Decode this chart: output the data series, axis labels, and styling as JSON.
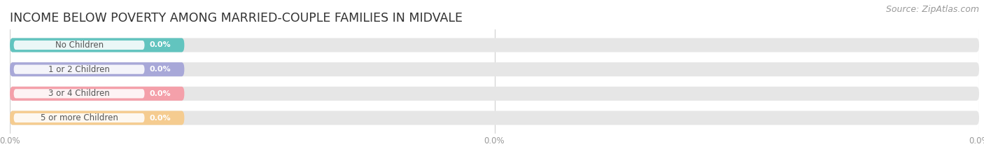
{
  "title": "INCOME BELOW POVERTY AMONG MARRIED-COUPLE FAMILIES IN MIDVALE",
  "source": "Source: ZipAtlas.com",
  "categories": [
    "No Children",
    "1 or 2 Children",
    "3 or 4 Children",
    "5 or more Children"
  ],
  "values": [
    0.0,
    0.0,
    0.0,
    0.0
  ],
  "bar_colors": [
    "#62c4bf",
    "#a8a8d8",
    "#f4a0aa",
    "#f5cc90"
  ],
  "bar_bg_color": "#e6e6e6",
  "category_label_color": "#555555",
  "value_label_color": "#ffffff",
  "figsize": [
    14.06,
    2.33
  ],
  "dpi": 100,
  "bar_height": 0.58,
  "title_fontsize": 12.5,
  "source_fontsize": 9,
  "label_fontsize": 8.5,
  "value_fontsize": 8
}
